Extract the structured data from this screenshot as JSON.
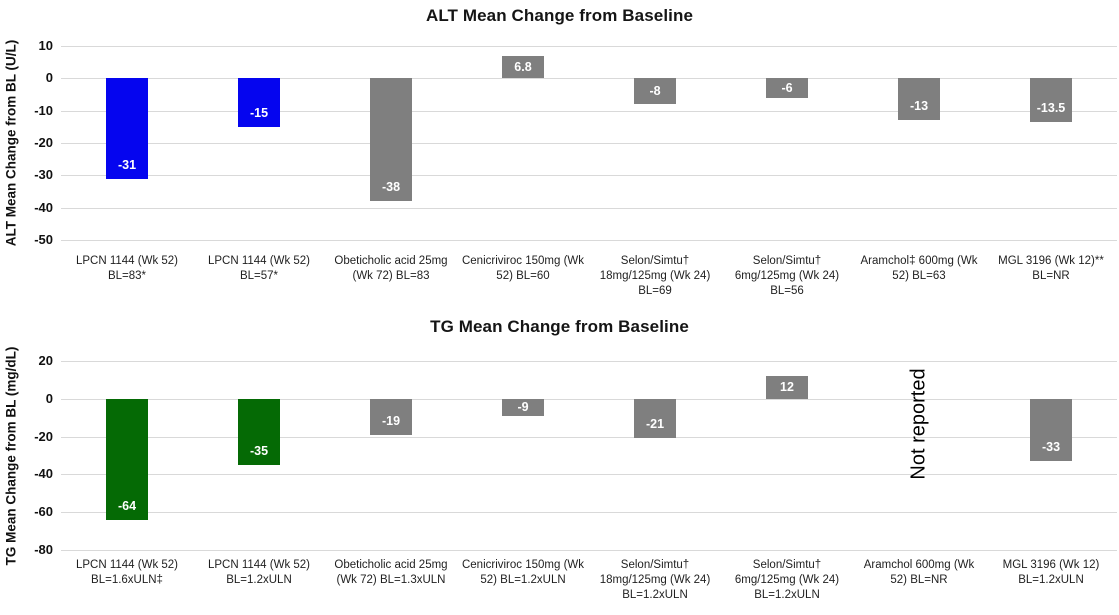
{
  "figure": {
    "background_color": "#ffffff",
    "gridline_color": "#d9d9d9",
    "bar_gray": "#7f7f7f",
    "alt_highlight_blue": "#0505ef",
    "tg_highlight_green": "#056a05"
  },
  "chart_data": [
    {
      "type": "bar",
      "title": "ALT Mean Change from Baseline",
      "ylabel": "ALT Mean Change from BL (U/L)",
      "xlabel": "",
      "ylim": [
        -50,
        10
      ],
      "yticks": [
        10,
        0,
        -10,
        -20,
        -30,
        -40,
        -50
      ],
      "grid": true,
      "legend": null,
      "gridline_color": "#d9d9d9",
      "categories": [
        [
          "LPCN 1144 (Wk 52)",
          "BL=83*"
        ],
        [
          "LPCN 1144 (Wk 52)",
          "BL=57*"
        ],
        [
          "Obeticholic acid 25mg",
          "(Wk 72) BL=83"
        ],
        [
          "Cenicriviroc 150mg (Wk",
          "52) BL=60"
        ],
        [
          "Selon/Simtu†",
          "18mg/125mg (Wk 24)",
          "BL=69"
        ],
        [
          "Selon/Simtu†",
          "6mg/125mg (Wk 24)",
          "BL=56"
        ],
        [
          "Aramchol‡ 600mg (Wk",
          "52) BL=63"
        ],
        [
          "MGL 3196 (Wk 12)**",
          "BL=NR"
        ]
      ],
      "values": [
        -31,
        -15,
        -38,
        6.8,
        -8,
        -6,
        -13,
        -13.5
      ],
      "labels": [
        "-31",
        "-15",
        "-38",
        "6.8",
        "-8",
        "-6",
        "-13",
        "-13.5"
      ],
      "colors": [
        "#0505ef",
        "#0505ef",
        "#7f7f7f",
        "#7f7f7f",
        "#7f7f7f",
        "#7f7f7f",
        "#7f7f7f",
        "#7f7f7f"
      ]
    },
    {
      "type": "bar",
      "title": "TG Mean Change from Baseline",
      "ylabel": "TG Mean Change from BL (mg/dL)",
      "xlabel": "",
      "ylim": [
        -80,
        20
      ],
      "yticks": [
        20,
        0,
        -20,
        -40,
        -60,
        -80
      ],
      "grid": true,
      "legend": null,
      "gridline_color": "#d9d9d9",
      "categories": [
        [
          "LPCN 1144 (Wk 52)",
          "BL=1.6xULN‡"
        ],
        [
          "LPCN 1144 (Wk 52)",
          "BL=1.2xULN"
        ],
        [
          "Obeticholic acid 25mg",
          "(Wk 72) BL=1.3xULN"
        ],
        [
          "Cenicriviroc 150mg (Wk",
          "52) BL=1.2xULN"
        ],
        [
          "Selon/Simtu†",
          "18mg/125mg (Wk 24)",
          "BL=1.2xULN"
        ],
        [
          "Selon/Simtu†",
          "6mg/125mg (Wk 24)",
          "BL=1.2xULN"
        ],
        [
          "Aramchol 600mg (Wk",
          "52) BL=NR"
        ],
        [
          "MGL 3196 (Wk 12)",
          "BL=1.2xULN"
        ]
      ],
      "values": [
        -64,
        -35,
        -19,
        -9,
        -21,
        12,
        null,
        -33
      ],
      "labels": [
        "-64",
        "-35",
        "-19",
        "-9",
        "-21",
        "12",
        "Not reported",
        "-33"
      ],
      "colors": [
        "#056a05",
        "#056a05",
        "#7f7f7f",
        "#7f7f7f",
        "#7f7f7f",
        "#7f7f7f",
        null,
        "#7f7f7f"
      ]
    }
  ]
}
